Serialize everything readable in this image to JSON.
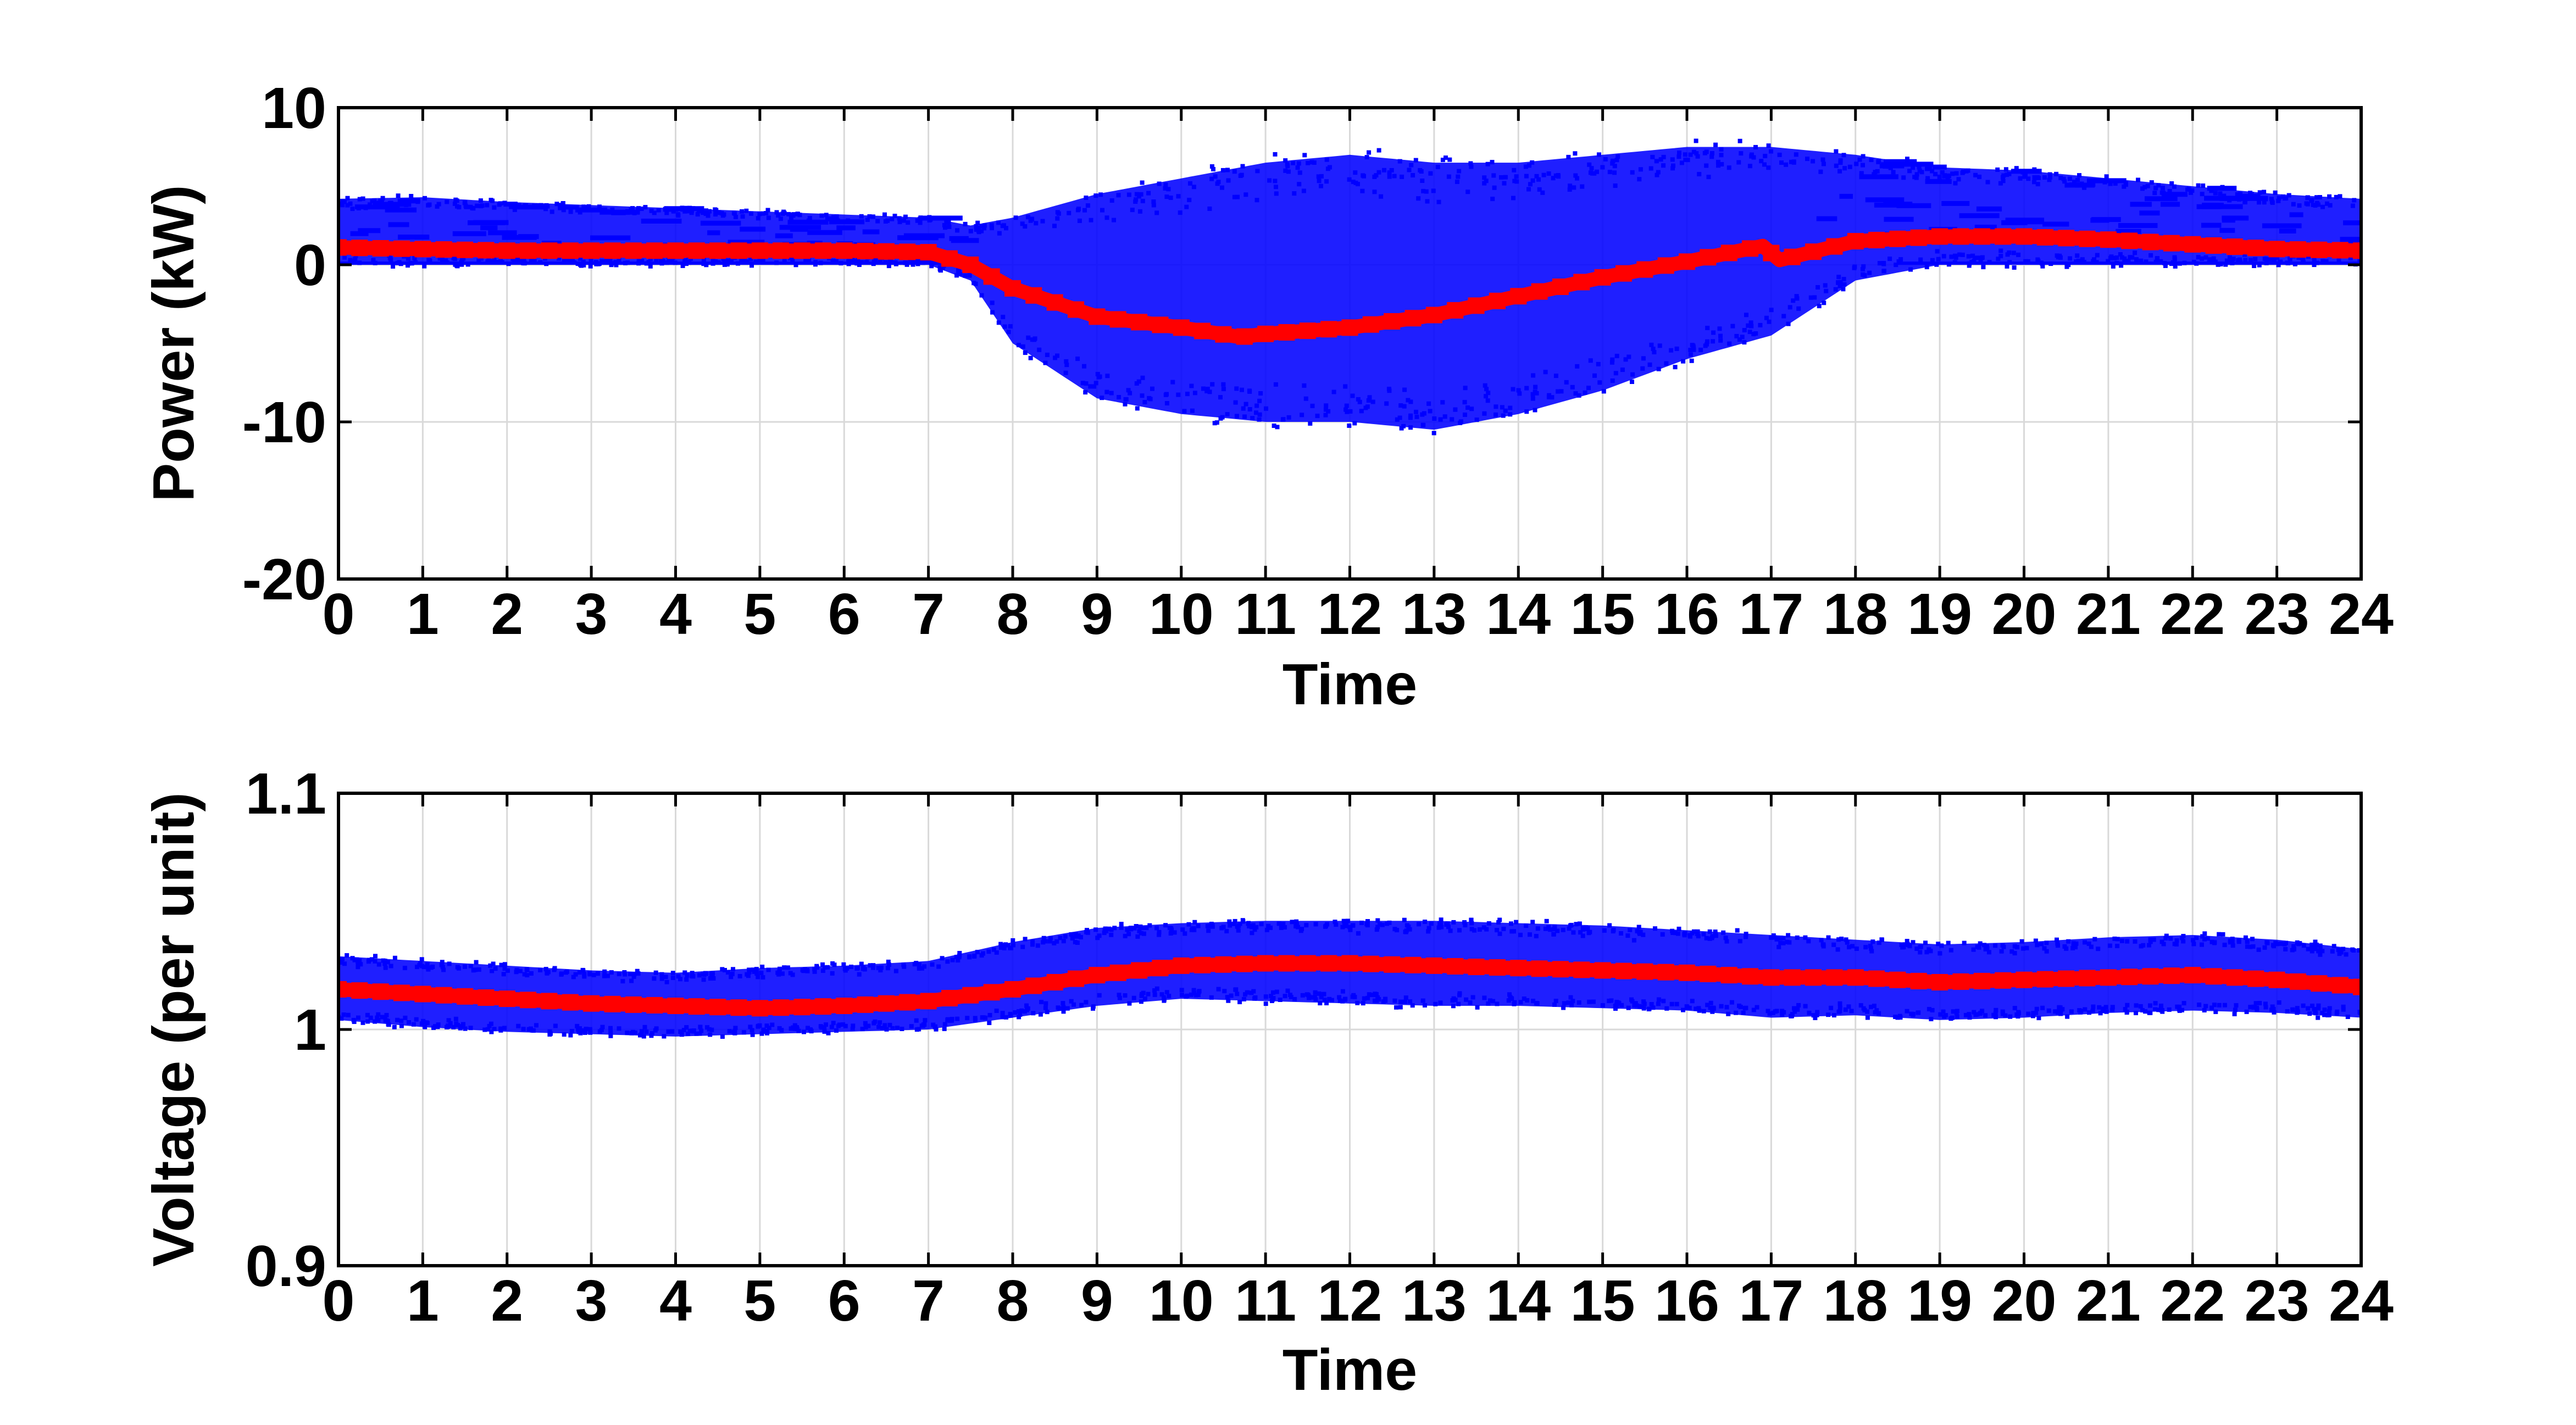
{
  "colors": {
    "background": "#ffffff",
    "scatter": "#0000ff",
    "mean": "#ff0000",
    "grid": "#d9d9d9",
    "axes": "#000000"
  },
  "chart_data": [
    {
      "type": "scatter",
      "xlabel": "Time",
      "ylabel": "Power (kW)",
      "xlim": [
        0,
        24
      ],
      "ylim": [
        -20,
        10
      ],
      "xticks": [
        0,
        1,
        2,
        3,
        4,
        5,
        6,
        7,
        8,
        9,
        10,
        11,
        12,
        13,
        14,
        15,
        16,
        17,
        18,
        19,
        20,
        21,
        22,
        23,
        24
      ],
      "yticks": [
        -20,
        -10,
        0,
        10
      ],
      "grid": true,
      "series": [
        {
          "role": "individual",
          "color": "#0000ff",
          "envelope": {
            "x": [
              0,
              1,
              2,
              3,
              4,
              5,
              6,
              7,
              7.5,
              8,
              9,
              10,
              11,
              12,
              13,
              14,
              15,
              16,
              17,
              18,
              19,
              20,
              21,
              22,
              23,
              24
            ],
            "upper": [
              4.2,
              4.3,
              4.0,
              3.8,
              3.6,
              3.4,
              3.2,
              3.0,
              2.5,
              3.0,
              4.5,
              5.5,
              6.5,
              7.0,
              6.5,
              6.5,
              7.0,
              7.5,
              7.5,
              7.0,
              6.2,
              6.0,
              5.5,
              5.0,
              4.5,
              4.2
            ],
            "lower": [
              0.0,
              0.0,
              0.0,
              0.0,
              0.0,
              0.0,
              0.0,
              0.0,
              -1.0,
              -5.0,
              -8.5,
              -9.5,
              -10.0,
              -10.0,
              -10.5,
              -9.5,
              -8.0,
              -6.0,
              -4.5,
              -1.0,
              0.0,
              0.0,
              0.0,
              0.0,
              0.0,
              0.0
            ]
          }
        },
        {
          "role": "mean",
          "color": "#ff0000",
          "x": [
            0,
            1,
            2,
            3,
            4,
            5,
            6,
            7,
            7.5,
            8,
            9,
            10,
            10.7,
            11,
            12,
            13,
            14,
            15,
            16,
            16.9,
            17.1,
            18,
            19,
            20,
            21,
            22,
            23,
            24
          ],
          "y": [
            1.1,
            1.0,
            0.9,
            0.9,
            0.9,
            0.9,
            0.9,
            0.8,
            0.0,
            -1.5,
            -3.3,
            -4.0,
            -4.6,
            -4.4,
            -4.0,
            -3.2,
            -2.0,
            -0.8,
            0.2,
            1.2,
            0.3,
            1.5,
            1.8,
            1.8,
            1.6,
            1.3,
            1.0,
            0.9
          ]
        }
      ]
    },
    {
      "type": "scatter",
      "xlabel": "Time",
      "ylabel": "Voltage (per unit)",
      "xlim": [
        0,
        24
      ],
      "ylim": [
        0.9,
        1.1
      ],
      "xticks": [
        0,
        1,
        2,
        3,
        4,
        5,
        6,
        7,
        8,
        9,
        10,
        11,
        12,
        13,
        14,
        15,
        16,
        17,
        18,
        19,
        20,
        21,
        22,
        23,
        24
      ],
      "yticks": [
        0.9,
        1,
        1.1
      ],
      "ytick_labels": [
        "0.9",
        "1",
        "1.1"
      ],
      "grid": true,
      "series": [
        {
          "role": "individual",
          "color": "#0000ff",
          "envelope": {
            "x": [
              0,
              1,
              2,
              3,
              4,
              5,
              6,
              7,
              8,
              9,
              10,
              11,
              12,
              13,
              14,
              15,
              16,
              17,
              18,
              19,
              20,
              21,
              22,
              23,
              24
            ],
            "upper": [
              1.031,
              1.029,
              1.027,
              1.025,
              1.024,
              1.026,
              1.027,
              1.029,
              1.037,
              1.043,
              1.045,
              1.046,
              1.046,
              1.046,
              1.045,
              1.044,
              1.042,
              1.04,
              1.038,
              1.036,
              1.037,
              1.039,
              1.04,
              1.038,
              1.034
            ],
            "lower": [
              1.004,
              1.001,
              0.999,
              0.998,
              0.997,
              0.998,
              0.999,
              1.0,
              1.005,
              1.01,
              1.013,
              1.012,
              1.011,
              1.01,
              1.01,
              1.009,
              1.008,
              1.005,
              1.006,
              1.004,
              1.005,
              1.007,
              1.008,
              1.007,
              1.005
            ]
          }
        },
        {
          "role": "mean",
          "color": "#ff0000",
          "x": [
            0,
            1,
            2,
            3,
            4,
            5,
            6,
            7,
            8,
            9,
            10,
            11,
            12,
            13,
            14,
            15,
            16,
            17,
            18,
            19,
            20,
            21,
            22,
            23,
            24
          ],
          "y": [
            1.017,
            1.015,
            1.013,
            1.011,
            1.01,
            1.009,
            1.01,
            1.012,
            1.017,
            1.023,
            1.027,
            1.028,
            1.028,
            1.027,
            1.026,
            1.025,
            1.024,
            1.022,
            1.022,
            1.02,
            1.021,
            1.022,
            1.023,
            1.021,
            1.018
          ]
        }
      ]
    }
  ]
}
